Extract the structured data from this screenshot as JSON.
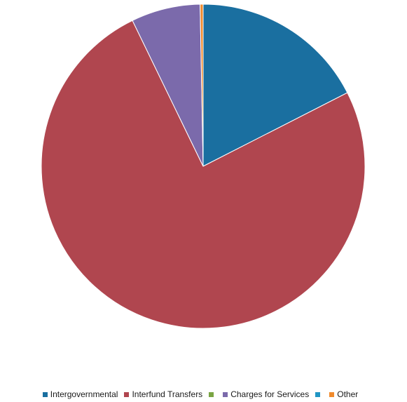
{
  "chart_data": {
    "type": "pie",
    "title": "",
    "slices": [
      {
        "label": "Intergovernmental",
        "value": 17.5,
        "color": "#1a6fa0"
      },
      {
        "label": "Interfund Transfers",
        "value": 75.3,
        "color": "#b0464f"
      },
      {
        "label": "",
        "value": 0.0,
        "color": "#7aa544"
      },
      {
        "label": "Charges for Services",
        "value": 6.9,
        "color": "#7b6aab"
      },
      {
        "label": "",
        "value": 0.0,
        "color": "#2196c4"
      },
      {
        "label": "Other",
        "value": 0.3,
        "color": "#f08a2c"
      }
    ],
    "legend": "bottom",
    "start_angle": "12 o'clock",
    "direction": "clockwise"
  }
}
